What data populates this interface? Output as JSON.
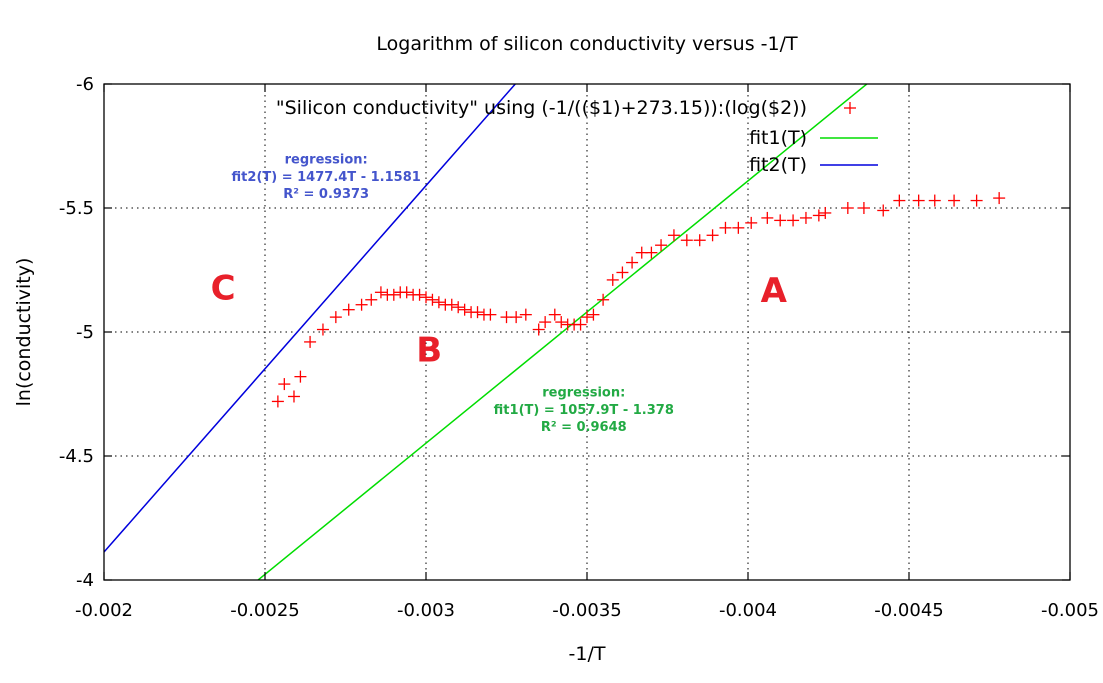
{
  "chart_data": {
    "type": "scatter",
    "title": "Logarithm of silicon conductivity versus -1/T",
    "xlabel": "-1/T",
    "ylabel": "ln(conductivity)",
    "xlim": [
      -0.002,
      -0.005
    ],
    "ylim": [
      -4,
      -6
    ],
    "x_axis_direction": "decreasing left-to-right",
    "y_axis_direction": "increasing values downward (-6 at top, -4 at bottom)",
    "x_ticks": [
      "-0.002",
      "-0.0025",
      "-0.003",
      "-0.0035",
      "-0.004",
      "-0.0045",
      "-0.005"
    ],
    "y_ticks": [
      "-6",
      "-5.5",
      "-5",
      "-4.5",
      "-4"
    ],
    "grid": true,
    "legend_position": "top-right",
    "series": [
      {
        "name": "\"Silicon conductivity\" using (-1/(($1)+273.15)):(log($2))",
        "kind": "points",
        "marker": "+",
        "color": "#ff0000",
        "points": [
          [
            -0.00254,
            -4.72
          ],
          [
            -0.00256,
            -4.79
          ],
          [
            -0.00259,
            -4.74
          ],
          [
            -0.00261,
            -4.82
          ],
          [
            -0.00264,
            -4.96
          ],
          [
            -0.00268,
            -5.01
          ],
          [
            -0.00272,
            -5.06
          ],
          [
            -0.00276,
            -5.09
          ],
          [
            -0.0028,
            -5.11
          ],
          [
            -0.00283,
            -5.13
          ],
          [
            -0.00286,
            -5.16
          ],
          [
            -0.00288,
            -5.15
          ],
          [
            -0.0029,
            -5.15
          ],
          [
            -0.00292,
            -5.16
          ],
          [
            -0.00294,
            -5.16
          ],
          [
            -0.00296,
            -5.15
          ],
          [
            -0.00298,
            -5.15
          ],
          [
            -0.003,
            -5.14
          ],
          [
            -0.00302,
            -5.13
          ],
          [
            -0.00304,
            -5.12
          ],
          [
            -0.00306,
            -5.11
          ],
          [
            -0.00308,
            -5.11
          ],
          [
            -0.0031,
            -5.1
          ],
          [
            -0.00312,
            -5.09
          ],
          [
            -0.00314,
            -5.08
          ],
          [
            -0.00316,
            -5.08
          ],
          [
            -0.00318,
            -5.07
          ],
          [
            -0.0032,
            -5.07
          ],
          [
            -0.00325,
            -5.06
          ],
          [
            -0.00328,
            -5.06
          ],
          [
            -0.00331,
            -5.07
          ],
          [
            -0.00335,
            -5.01
          ],
          [
            -0.00337,
            -5.04
          ],
          [
            -0.0034,
            -5.07
          ],
          [
            -0.00342,
            -5.04
          ],
          [
            -0.00344,
            -5.03
          ],
          [
            -0.00346,
            -5.03
          ],
          [
            -0.00348,
            -5.03
          ],
          [
            -0.0035,
            -5.06
          ],
          [
            -0.00352,
            -5.07
          ],
          [
            -0.00355,
            -5.13
          ],
          [
            -0.00358,
            -5.21
          ],
          [
            -0.00361,
            -5.24
          ],
          [
            -0.00364,
            -5.28
          ],
          [
            -0.00367,
            -5.32
          ],
          [
            -0.0037,
            -5.32
          ],
          [
            -0.00373,
            -5.35
          ],
          [
            -0.00377,
            -5.39
          ],
          [
            -0.00381,
            -5.37
          ],
          [
            -0.00385,
            -5.37
          ],
          [
            -0.00389,
            -5.39
          ],
          [
            -0.00393,
            -5.42
          ],
          [
            -0.00397,
            -5.42
          ],
          [
            -0.00401,
            -5.44
          ],
          [
            -0.00406,
            -5.46
          ],
          [
            -0.0041,
            -5.45
          ],
          [
            -0.00414,
            -5.45
          ],
          [
            -0.00418,
            -5.46
          ],
          [
            -0.00422,
            -5.47
          ],
          [
            -0.00424,
            -5.48
          ],
          [
            -0.00431,
            -5.5
          ],
          [
            -0.00436,
            -5.5
          ],
          [
            -0.00442,
            -5.49
          ],
          [
            -0.00447,
            -5.53
          ],
          [
            -0.00453,
            -5.53
          ],
          [
            -0.00458,
            -5.53
          ],
          [
            -0.00464,
            -5.53
          ],
          [
            -0.00471,
            -5.53
          ],
          [
            -0.00478,
            -5.54
          ]
        ]
      },
      {
        "name": "fit1(T)",
        "kind": "line",
        "color": "#00dd00",
        "slope": 1057.9,
        "intercept": -1.378
      },
      {
        "name": "fit2(T)",
        "kind": "line",
        "color": "#0000dd",
        "slope": 1477.4,
        "intercept": -1.1581
      }
    ],
    "annotations": [
      {
        "id": "region-a",
        "text": "A",
        "x": -0.00408,
        "y": -5.17,
        "color": "#e8202a"
      },
      {
        "id": "region-b",
        "text": "B",
        "x": -0.00301,
        "y": -4.93,
        "color": "#e8202a"
      },
      {
        "id": "region-c",
        "text": "C",
        "x": -0.00237,
        "y": -5.18,
        "color": "#e8202a"
      },
      {
        "id": "fit2-regression",
        "color": "#4455cc",
        "x": -0.00269,
        "lines": [
          "regression:",
          "fit2(T) = 1477.4T - 1.1581",
          "R² = 0.9373"
        ],
        "ys": [
          -5.7,
          -5.63,
          -5.56
        ]
      },
      {
        "id": "fit1-regression",
        "color": "#22aa44",
        "x": -0.00349,
        "lines": [
          "regression:",
          "fit1(T) = 1057.9T - 1.378",
          "R² = 0.9648"
        ],
        "ys": [
          -4.76,
          -4.69,
          -4.62
        ]
      }
    ]
  }
}
